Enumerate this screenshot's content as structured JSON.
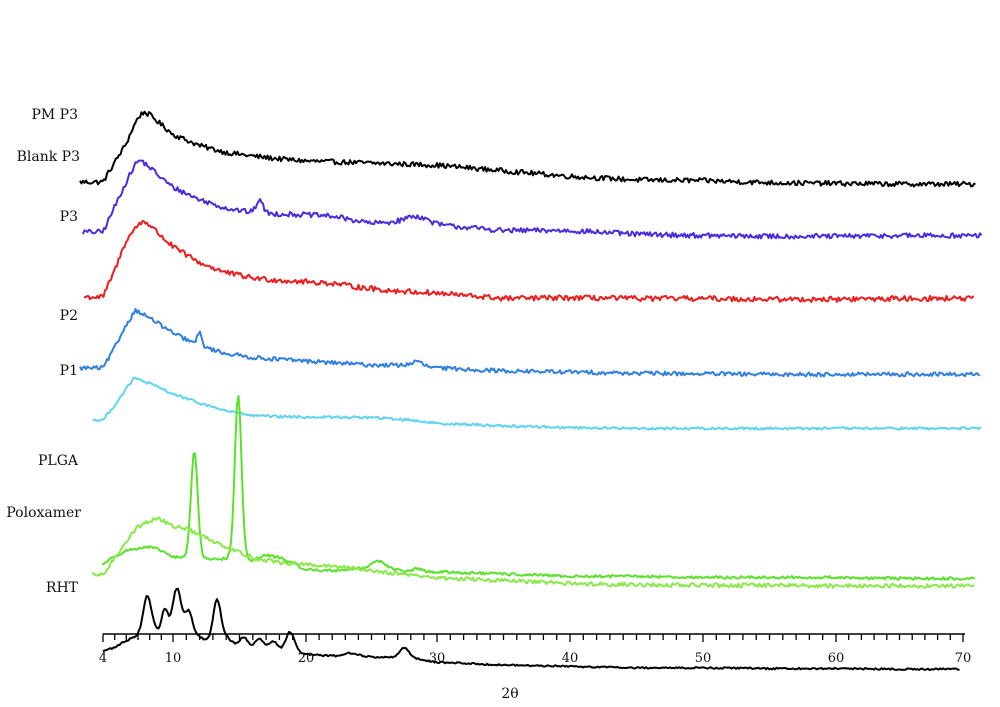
{
  "chart_data": {
    "type": "line",
    "title": "",
    "xlabel": "2θ",
    "ylabel": "",
    "xlim": [
      4,
      70
    ],
    "x_ticks": [
      4,
      10,
      20,
      30,
      40,
      50,
      60,
      70
    ],
    "grid": false,
    "series": [
      {
        "name": "PM P3",
        "color": "#000000",
        "points": [
          [
            4,
            0.0
          ],
          [
            5,
            0.28
          ],
          [
            6,
            0.55
          ],
          [
            6.5,
            0.75
          ],
          [
            7,
            0.92
          ],
          [
            7.5,
            1.0
          ],
          [
            8,
            0.96
          ],
          [
            9,
            0.82
          ],
          [
            10,
            0.68
          ],
          [
            12,
            0.52
          ],
          [
            14,
            0.42
          ],
          [
            16,
            0.37
          ],
          [
            18,
            0.33
          ],
          [
            20,
            0.3
          ],
          [
            25,
            0.27
          ],
          [
            30,
            0.24
          ],
          [
            35,
            0.16
          ],
          [
            40,
            0.08
          ],
          [
            45,
            0.03
          ],
          [
            50,
            0.02
          ],
          [
            55,
            -0.01
          ],
          [
            60,
            -0.02
          ],
          [
            65,
            -0.03
          ],
          [
            70,
            -0.03
          ]
        ],
        "noise": 0.035,
        "peaks": []
      },
      {
        "name": "Blank P3",
        "color": "#4b2be0",
        "points": [
          [
            4,
            0.0
          ],
          [
            5,
            0.35
          ],
          [
            6,
            0.7
          ],
          [
            6.8,
            0.95
          ],
          [
            7.2,
            1.0
          ],
          [
            8,
            0.9
          ],
          [
            9,
            0.75
          ],
          [
            10,
            0.62
          ],
          [
            12,
            0.45
          ],
          [
            14,
            0.33
          ],
          [
            16,
            0.27
          ],
          [
            18,
            0.25
          ],
          [
            20,
            0.24
          ],
          [
            22,
            0.22
          ],
          [
            25,
            0.12
          ],
          [
            28,
            0.15
          ],
          [
            30,
            0.1
          ],
          [
            35,
            0.02
          ],
          [
            40,
            0.02
          ],
          [
            45,
            -0.03
          ],
          [
            50,
            -0.05
          ],
          [
            55,
            -0.06
          ],
          [
            60,
            -0.06
          ],
          [
            65,
            -0.05
          ],
          [
            70,
            -0.05
          ]
        ],
        "noise": 0.035,
        "peaks": [
          [
            16.5,
            0.18,
            0.25
          ],
          [
            28.5,
            0.08,
            0.8
          ]
        ]
      },
      {
        "name": "P3",
        "color": "#ee1c1c",
        "points": [
          [
            4,
            0.0
          ],
          [
            5,
            0.35
          ],
          [
            6,
            0.75
          ],
          [
            7,
            0.95
          ],
          [
            7.5,
            1.0
          ],
          [
            8,
            0.95
          ],
          [
            9,
            0.8
          ],
          [
            10,
            0.66
          ],
          [
            12,
            0.45
          ],
          [
            14,
            0.32
          ],
          [
            16,
            0.25
          ],
          [
            18,
            0.22
          ],
          [
            20,
            0.2
          ],
          [
            22,
            0.18
          ],
          [
            24,
            0.13
          ],
          [
            26,
            0.09
          ],
          [
            30,
            0.05
          ],
          [
            35,
            -0.02
          ],
          [
            40,
            -0.01
          ],
          [
            45,
            -0.02
          ],
          [
            50,
            -0.02
          ],
          [
            55,
            -0.03
          ],
          [
            60,
            -0.03
          ],
          [
            65,
            -0.02
          ],
          [
            70,
            -0.02
          ]
        ],
        "noise": 0.035,
        "peaks": []
      },
      {
        "name": "P2",
        "color": "#2f7fe0",
        "points": [
          [
            4,
            0.0
          ],
          [
            5,
            0.35
          ],
          [
            6,
            0.75
          ],
          [
            6.8,
            1.0
          ],
          [
            7.5,
            0.92
          ],
          [
            8.5,
            0.8
          ],
          [
            10,
            0.6
          ],
          [
            12,
            0.38
          ],
          [
            14,
            0.25
          ],
          [
            16,
            0.18
          ],
          [
            18,
            0.15
          ],
          [
            20,
            0.12
          ],
          [
            25,
            0.05
          ],
          [
            28,
            0.05
          ],
          [
            30,
            0.0
          ],
          [
            35,
            -0.05
          ],
          [
            40,
            -0.07
          ],
          [
            45,
            -0.09
          ],
          [
            50,
            -0.1
          ],
          [
            55,
            -0.11
          ],
          [
            60,
            -0.11
          ],
          [
            65,
            -0.11
          ],
          [
            70,
            -0.11
          ]
        ],
        "noise": 0.035,
        "peaks": [
          [
            12,
            0.22,
            0.18
          ],
          [
            28.5,
            0.07,
            0.4
          ]
        ]
      },
      {
        "name": "P1",
        "color": "#5fd3ef",
        "points": [
          [
            4,
            0.0
          ],
          [
            5,
            0.35
          ],
          [
            6,
            0.75
          ],
          [
            6.7,
            1.0
          ],
          [
            7.5,
            0.92
          ],
          [
            9,
            0.75
          ],
          [
            10,
            0.62
          ],
          [
            12,
            0.4
          ],
          [
            14,
            0.22
          ],
          [
            16,
            0.1
          ],
          [
            18,
            0.08
          ],
          [
            20,
            0.07
          ],
          [
            25,
            0.06
          ],
          [
            28,
            0.0
          ],
          [
            30,
            -0.08
          ],
          [
            35,
            -0.14
          ],
          [
            40,
            -0.18
          ],
          [
            45,
            -0.2
          ],
          [
            50,
            -0.2
          ],
          [
            55,
            -0.2
          ],
          [
            60,
            -0.2
          ],
          [
            65,
            -0.2
          ],
          [
            70,
            -0.2
          ]
        ],
        "noise": 0.03,
        "peaks": []
      },
      {
        "name": "PLGA",
        "color": "#5ae22a",
        "points": [
          [
            4,
            0.0
          ],
          [
            5,
            0.07
          ],
          [
            6,
            0.12
          ],
          [
            7,
            0.14
          ],
          [
            8,
            0.15
          ],
          [
            9,
            0.12
          ],
          [
            10,
            0.06
          ],
          [
            11,
            0.06
          ],
          [
            12,
            0.06
          ],
          [
            13,
            0.04
          ],
          [
            14,
            0.05
          ],
          [
            15,
            0.06
          ],
          [
            16,
            0.03
          ],
          [
            17,
            0.08
          ],
          [
            18,
            0.06
          ],
          [
            20,
            -0.05
          ],
          [
            22,
            -0.06
          ],
          [
            24,
            -0.04
          ],
          [
            26,
            -0.04
          ],
          [
            28,
            -0.07
          ],
          [
            30,
            -0.07
          ],
          [
            35,
            -0.09
          ],
          [
            40,
            -0.11
          ],
          [
            45,
            -0.11
          ],
          [
            50,
            -0.12
          ],
          [
            55,
            -0.12
          ],
          [
            60,
            -0.12
          ],
          [
            65,
            -0.13
          ],
          [
            70,
            -0.13
          ]
        ],
        "noise": 0.012,
        "peaks": [
          [
            11.6,
            0.95,
            0.25
          ],
          [
            14.9,
            1.45,
            0.25
          ],
          [
            25.5,
            0.07,
            0.5
          ],
          [
            28.5,
            0.03,
            0.3
          ]
        ]
      },
      {
        "name": "Poloxamer",
        "color": "#8ae84a",
        "points": [
          [
            4,
            0.0
          ],
          [
            5,
            0.3
          ],
          [
            6,
            0.6
          ],
          [
            7,
            0.85
          ],
          [
            8,
            0.95
          ],
          [
            8.7,
            1.0
          ],
          [
            10,
            0.85
          ],
          [
            11,
            0.82
          ],
          [
            12,
            0.7
          ],
          [
            14,
            0.5
          ],
          [
            16,
            0.3
          ],
          [
            18,
            0.22
          ],
          [
            20,
            0.18
          ],
          [
            22,
            0.15
          ],
          [
            25,
            0.08
          ],
          [
            28,
            0.0
          ],
          [
            30,
            -0.05
          ],
          [
            35,
            -0.1
          ],
          [
            40,
            -0.15
          ],
          [
            45,
            -0.17
          ],
          [
            50,
            -0.18
          ],
          [
            55,
            -0.18
          ],
          [
            60,
            -0.19
          ],
          [
            65,
            -0.19
          ],
          [
            70,
            -0.19
          ]
        ],
        "noise": 0.035,
        "peaks": []
      },
      {
        "name": "RHT",
        "color": "#000000",
        "points": [
          [
            4,
            0.0
          ],
          [
            5,
            0.05
          ],
          [
            6,
            0.15
          ],
          [
            7,
            0.22
          ],
          [
            8,
            0.25
          ],
          [
            9,
            0.3
          ],
          [
            10,
            0.35
          ],
          [
            11,
            0.35
          ],
          [
            12,
            0.2
          ],
          [
            13,
            0.1
          ],
          [
            14,
            0.2
          ],
          [
            15,
            0.05
          ],
          [
            16,
            0.05
          ],
          [
            17,
            0.02
          ],
          [
            18,
            0.02
          ],
          [
            19,
            0.02
          ],
          [
            20,
            -0.05
          ],
          [
            22,
            -0.07
          ],
          [
            24,
            -0.08
          ],
          [
            26,
            -0.09
          ],
          [
            28,
            -0.1
          ],
          [
            30,
            -0.16
          ],
          [
            35,
            -0.2
          ],
          [
            40,
            -0.22
          ],
          [
            45,
            -0.24
          ],
          [
            50,
            -0.24
          ],
          [
            55,
            -0.25
          ],
          [
            60,
            -0.25
          ],
          [
            65,
            -0.26
          ],
          [
            70,
            -0.26
          ]
        ],
        "noise": 0.012,
        "peaks": [
          [
            7.8,
            0.55,
            0.35
          ],
          [
            9.3,
            0.3,
            0.25
          ],
          [
            10.3,
            0.55,
            0.3
          ],
          [
            11.2,
            0.25,
            0.25
          ],
          [
            13.3,
            0.6,
            0.3
          ],
          [
            15.3,
            0.15,
            0.3
          ],
          [
            16.5,
            0.15,
            0.3
          ],
          [
            17.5,
            0.12,
            0.3
          ],
          [
            18.8,
            0.25,
            0.3
          ],
          [
            23.5,
            0.05,
            0.5
          ],
          [
            27.5,
            0.15,
            0.35
          ]
        ]
      }
    ]
  }
}
